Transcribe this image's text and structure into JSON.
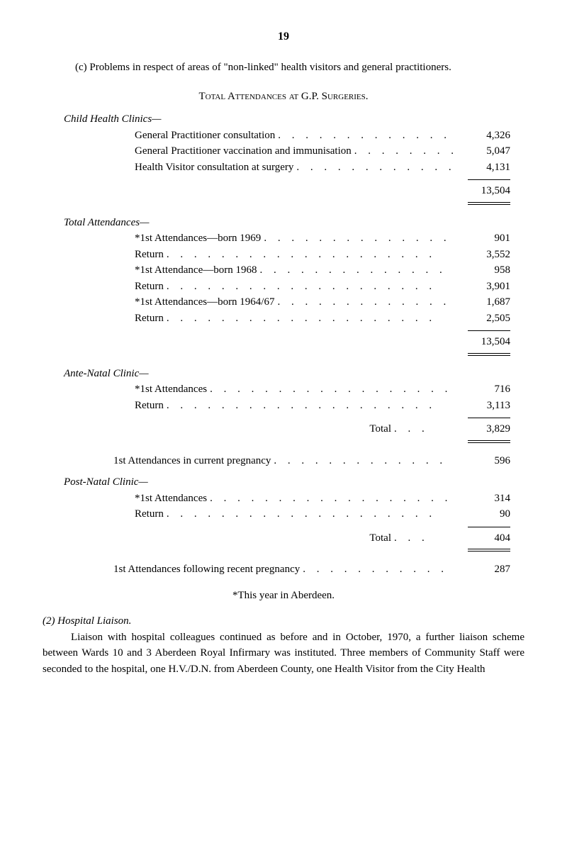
{
  "page_number": "19",
  "para_c": "(c) Problems in respect of areas of \"non-linked\" health visitors and general practitioners.",
  "section_title": "Total Attendances at G.P. Surgeries.",
  "child_health": {
    "heading": "Child Health Clinics—",
    "rows": [
      {
        "label": "General Practitioner consultation",
        "value": "4,326"
      },
      {
        "label": "General Practitioner vaccination and immunisation",
        "value": "5,047"
      },
      {
        "label": "Health Visitor consultation at surgery",
        "value": "4,131"
      }
    ],
    "total": "13,504"
  },
  "total_attendances": {
    "heading": "Total Attendances—",
    "rows": [
      {
        "label": "*1st Attendances—born 1969",
        "value": "901"
      },
      {
        "label": "Return",
        "value": "3,552"
      },
      {
        "label": "*1st Attendance—born 1968",
        "value": "958"
      },
      {
        "label": "Return",
        "value": "3,901"
      },
      {
        "label": "*1st Attendances—born 1964/67",
        "value": "1,687"
      },
      {
        "label": "Return",
        "value": "2,505"
      }
    ],
    "total": "13,504"
  },
  "ante_natal": {
    "heading": "Ante-Natal Clinic—",
    "rows": [
      {
        "label": "*1st Attendances",
        "value": "716"
      },
      {
        "label": "Return",
        "value": "3,113"
      }
    ],
    "total_label": "Total",
    "total": "3,829",
    "extra": {
      "label": "1st Attendances in current pregnancy",
      "value": "596"
    }
  },
  "post_natal": {
    "heading": "Post-Natal Clinic—",
    "rows": [
      {
        "label": "*1st Attendances",
        "value": "314"
      },
      {
        "label": "Return",
        "value": "90"
      }
    ],
    "total_label": "Total",
    "total": "404",
    "extra": {
      "label": "1st Attendances following recent pregnancy",
      "value": "287"
    }
  },
  "footnote": "*This year in Aberdeen.",
  "hospital": {
    "heading": "(2) Hospital Liaison.",
    "body": "Liaison with hospital colleagues continued as before and in October, 1970, a further liaison scheme between Wards 10 and 3 Aberdeen Royal Infirmary was instituted. Three members of Community Staff were seconded to the hospital, one H.V./D.N. from Aberdeen County, one Health Visitor from the City Health"
  },
  "dots": ". . . . . . . . . . . . . . . . . . . .",
  "style": {
    "font_family": "Times New Roman",
    "font_size_body": 15,
    "color_text": "#000000",
    "color_bg": "#ffffff"
  }
}
